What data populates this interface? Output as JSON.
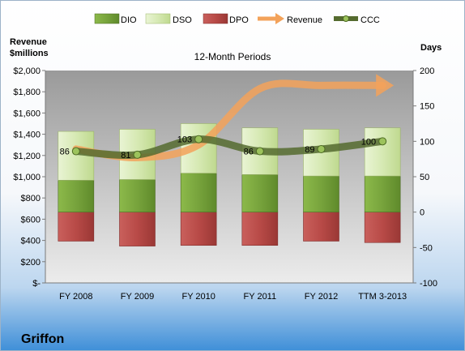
{
  "chart_data": {
    "type": "bar",
    "title": "12-Month Periods",
    "company": "Griffon",
    "left_axis_label": [
      "Revenue",
      "$millions"
    ],
    "right_axis_label": "Days",
    "categories": [
      "FY 2008",
      "FY 2009",
      "FY 2010",
      "FY 2011",
      "FY 2012",
      "TTM 3-2013"
    ],
    "left_ticks": [
      "$-",
      "$200",
      "$400",
      "$600",
      "$800",
      "$1,000",
      "$1,200",
      "$1,400",
      "$1,600",
      "$1,800",
      "$2,000"
    ],
    "right_ticks": [
      "-100",
      "-50",
      "0",
      "50",
      "100",
      "150",
      "200"
    ],
    "ylim_left": [
      0,
      2000
    ],
    "ylim_right": [
      -100,
      200
    ],
    "legend": [
      "DIO",
      "DSO",
      "DPO",
      "Revenue",
      "CCC"
    ],
    "legend_position": "top",
    "grid": false,
    "series": [
      {
        "name": "DIO",
        "axis": "days",
        "values": [
          45,
          46,
          55,
          53,
          51,
          51
        ]
      },
      {
        "name": "DSO",
        "axis": "days",
        "values": [
          69,
          71,
          70,
          66,
          66,
          68
        ]
      },
      {
        "name": "DPO",
        "axis": "days",
        "values": [
          -41,
          -48,
          -47,
          -47,
          -41,
          -43
        ]
      },
      {
        "name": "Revenue",
        "axis": "revenue",
        "values": [
          1260,
          1180,
          1300,
          1830,
          1860,
          1860
        ]
      },
      {
        "name": "CCC",
        "axis": "days",
        "values": [
          86,
          81,
          103,
          86,
          89,
          100
        ]
      }
    ],
    "ccc_labels": [
      "86",
      "81",
      "103",
      "86",
      "89",
      "100"
    ],
    "colors": {
      "DIO": "#77a33c",
      "DSO": "#d6e9b3",
      "DPO": "#c0504d",
      "Revenue": "#f3a25a",
      "CCC": "#556b2f",
      "background_top": "#ffffff",
      "background_bottom": "#3f8fd8",
      "plot_top": "#9c9c9c",
      "plot_bottom": "#e8e8e8"
    }
  }
}
